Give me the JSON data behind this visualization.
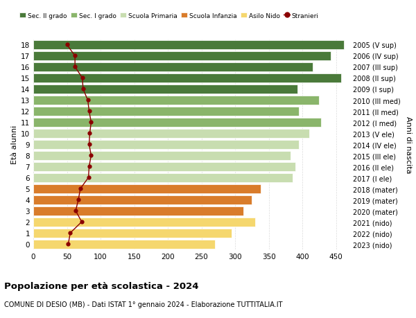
{
  "ages": [
    0,
    1,
    2,
    3,
    4,
    5,
    6,
    7,
    8,
    9,
    10,
    11,
    12,
    13,
    14,
    15,
    16,
    17,
    18
  ],
  "years": [
    "2023 (nido)",
    "2022 (nido)",
    "2021 (nido)",
    "2020 (mater)",
    "2019 (mater)",
    "2018 (mater)",
    "2017 (I ele)",
    "2016 (II ele)",
    "2015 (III ele)",
    "2014 (IV ele)",
    "2013 (V ele)",
    "2012 (I med)",
    "2011 (II med)",
    "2010 (III med)",
    "2009 (I sup)",
    "2008 (II sup)",
    "2007 (III sup)",
    "2006 (IV sup)",
    "2005 (V sup)"
  ],
  "bar_values": [
    270,
    295,
    330,
    312,
    325,
    338,
    385,
    390,
    382,
    395,
    410,
    428,
    395,
    425,
    393,
    458,
    415,
    442,
    462
  ],
  "stranieri": [
    52,
    55,
    72,
    63,
    67,
    70,
    82,
    83,
    86,
    83,
    84,
    86,
    83,
    81,
    74,
    73,
    62,
    62,
    50
  ],
  "bar_colors": {
    "asilo_nido": "#f5d76e",
    "scuola_infanzia": "#d97c2b",
    "scuola_primaria": "#c8ddb0",
    "sec_i_grado": "#8ab56b",
    "sec_ii_grado": "#4a7a3a"
  },
  "age_color_map": [
    0,
    0,
    0,
    1,
    1,
    1,
    2,
    2,
    2,
    2,
    2,
    3,
    3,
    3,
    4,
    4,
    4,
    4,
    4
  ],
  "stranieri_color": "#8b0000",
  "stranieri_marker": "o",
  "xlim": [
    0,
    470
  ],
  "xticks": [
    0,
    50,
    100,
    150,
    200,
    250,
    300,
    350,
    400,
    450
  ],
  "ylabel_left": "Età alunni",
  "ylabel_right": "Anni di nascita",
  "title": "Popolazione per età scolastica - 2024",
  "subtitle": "COMUNE DI DESIO (MB) - Dati ISTAT 1° gennaio 2024 - Elaborazione TUTTITALIA.IT",
  "legend_labels": [
    "Sec. II grado",
    "Sec. I grado",
    "Scuola Primaria",
    "Scuola Infanzia",
    "Asilo Nido",
    "Stranieri"
  ],
  "legend_colors": [
    "#4a7a3a",
    "#8ab56b",
    "#c8ddb0",
    "#d97c2b",
    "#f5d76e",
    "#8b0000"
  ],
  "background_color": "#ffffff",
  "bar_height": 0.82,
  "grid_color": "#cccccc"
}
